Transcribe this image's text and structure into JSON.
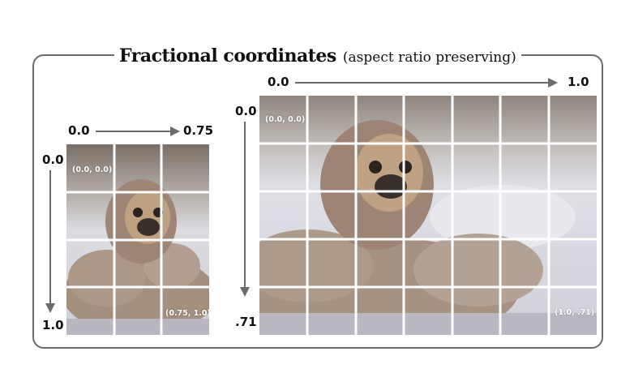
{
  "title": {
    "main": "Fractional coordinates",
    "subtitle": "(aspect ratio preserving)"
  },
  "left_panel": {
    "x_start": "0.0",
    "x_end": "0.75",
    "y_start": "0.0",
    "y_end": "1.0",
    "top_left_cell": "(0.0, 0.0)",
    "bottom_right_cell": "(0.75, 1.0)",
    "grid_cols": 3,
    "grid_rows": 4
  },
  "right_panel": {
    "x_start": "0.0",
    "x_end": "1.0",
    "y_start": "0.0",
    "y_end": ".71",
    "top_left_cell": "(0.0, 0.0)",
    "bottom_right_cell": "(1.0, .71)",
    "grid_cols": 7,
    "grid_rows": 5
  },
  "colors": {
    "frame": "#6b6b6b",
    "arrow": "#6b6b6b",
    "grid_line": "#ffffff",
    "blanket": "#a58f83",
    "pug": "#b89e84"
  },
  "icons": {
    "photo": "pug-in-blanket-photo"
  }
}
